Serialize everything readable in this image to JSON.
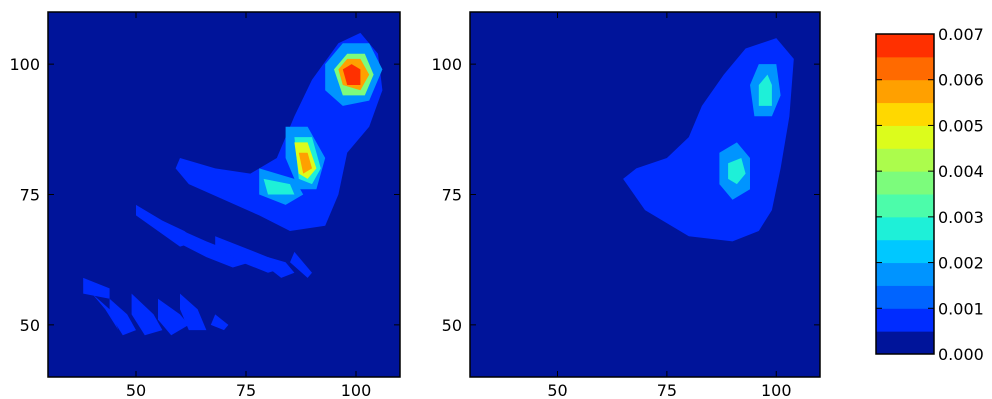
{
  "chart_data": [
    {
      "type": "heatmap",
      "subtype": "filled-contour",
      "xlim": [
        30,
        110
      ],
      "ylim": [
        40,
        110
      ],
      "xticks": [
        50,
        75,
        100
      ],
      "yticks": [
        50,
        75,
        100
      ],
      "xtick_labels": [
        "50",
        "75",
        "100"
      ],
      "ytick_labels": [
        "50",
        "75",
        "100"
      ],
      "title": "",
      "xlabel": "",
      "ylabel": "",
      "grid": false,
      "background_level": 0.0,
      "regions": [
        {
          "points": [
            [
              60,
              82
            ],
            [
              68,
              80
            ],
            [
              76,
              79
            ],
            [
              82,
              82
            ],
            [
              86,
              90
            ],
            [
              90,
              97
            ],
            [
              96,
              104
            ],
            [
              101,
              106
            ],
            [
              105,
              102
            ],
            [
              106,
              95
            ],
            [
              103,
              88
            ],
            [
              98,
              83
            ],
            [
              96,
              75
            ],
            [
              93,
              69
            ],
            [
              85,
              68
            ],
            [
              78,
              71
            ],
            [
              70,
              74
            ],
            [
              62,
              77
            ],
            [
              59,
              80
            ]
          ],
          "level": 0.0005
        },
        {
          "points": [
            [
              38,
              59
            ],
            [
              44,
              57
            ],
            [
              44,
              55
            ],
            [
              38,
              56
            ]
          ],
          "level": 0.0005
        },
        {
          "points": [
            [
              40,
              56
            ],
            [
              44,
              53
            ],
            [
              46,
              49
            ],
            [
              43,
              53
            ]
          ],
          "level": 0.0005
        },
        {
          "points": [
            [
              44,
              55
            ],
            [
              48,
              52
            ],
            [
              50,
              49
            ],
            [
              47,
              48
            ],
            [
              44,
              52
            ]
          ],
          "level": 0.0005
        },
        {
          "points": [
            [
              49,
              56
            ],
            [
              54,
              52
            ],
            [
              56,
              49
            ],
            [
              52,
              48
            ],
            [
              49,
              52
            ]
          ],
          "level": 0.0005
        },
        {
          "points": [
            [
              55,
              55
            ],
            [
              60,
              52
            ],
            [
              62,
              50
            ],
            [
              58,
              48
            ],
            [
              55,
              51
            ]
          ],
          "level": 0.0005
        },
        {
          "points": [
            [
              60,
              56
            ],
            [
              64,
              53
            ],
            [
              66,
              49
            ],
            [
              62,
              49
            ],
            [
              60,
              53
            ]
          ],
          "level": 0.0005
        },
        {
          "points": [
            [
              68,
              52
            ],
            [
              71,
              50
            ],
            [
              70,
              49
            ],
            [
              67,
              50
            ]
          ],
          "level": 0.0005
        },
        {
          "points": [
            [
              50,
              73
            ],
            [
              56,
              70
            ],
            [
              61,
              68
            ],
            [
              64,
              66
            ],
            [
              60,
              65
            ],
            [
              55,
              68
            ],
            [
              50,
              71
            ]
          ],
          "level": 0.0005
        },
        {
          "points": [
            [
              58,
              69
            ],
            [
              66,
              66
            ],
            [
              72,
              64
            ],
            [
              76,
              62
            ],
            [
              72,
              61
            ],
            [
              66,
              63
            ],
            [
              59,
              66
            ]
          ],
          "level": 0.0005
        },
        {
          "points": [
            [
              68,
              67
            ],
            [
              74,
              65
            ],
            [
              80,
              63
            ],
            [
              84,
              61
            ],
            [
              80,
              60
            ],
            [
              74,
              62
            ],
            [
              68,
              65
            ]
          ],
          "level": 0.0005
        },
        {
          "points": [
            [
              80,
              63
            ],
            [
              84,
              62
            ],
            [
              86,
              60
            ],
            [
              83,
              59
            ],
            [
              80,
              61
            ]
          ],
          "level": 0.0005
        },
        {
          "points": [
            [
              86,
              64
            ],
            [
              90,
              60
            ],
            [
              89,
              59
            ],
            [
              85,
              62
            ]
          ],
          "level": 0.0005
        },
        {
          "points": [
            [
              78,
              80
            ],
            [
              86,
              78
            ],
            [
              88,
              75
            ],
            [
              84,
              73
            ],
            [
              78,
              75
            ]
          ],
          "level": 0.0015
        },
        {
          "points": [
            [
              84,
              88
            ],
            [
              89,
              88
            ],
            [
              93,
              82
            ],
            [
              91,
              76
            ],
            [
              87,
              76
            ],
            [
              84,
              82
            ]
          ],
          "level": 0.0015
        },
        {
          "points": [
            [
              93,
              100
            ],
            [
              97,
              104
            ],
            [
              103,
              104
            ],
            [
              106,
              99
            ],
            [
              103,
              93
            ],
            [
              97,
              92
            ],
            [
              93,
              95
            ]
          ],
          "level": 0.0015
        },
        {
          "points": [
            [
              79,
              78
            ],
            [
              85,
              77
            ],
            [
              86,
              75
            ],
            [
              80,
              75
            ]
          ],
          "level": 0.0025
        },
        {
          "points": [
            [
              86,
              86
            ],
            [
              90,
              86
            ],
            [
              92,
              80
            ],
            [
              90,
              77
            ],
            [
              87,
              78
            ]
          ],
          "level": 0.0025
        },
        {
          "points": [
            [
              95,
              99
            ],
            [
              98,
              102
            ],
            [
              102,
              102
            ],
            [
              104,
              98
            ],
            [
              102,
              94
            ],
            [
              97,
              94
            ]
          ],
          "level": 0.0035
        },
        {
          "points": [
            [
              86,
              85
            ],
            [
              89,
              85
            ],
            [
              91,
              80
            ],
            [
              89,
              78
            ],
            [
              87,
              79
            ]
          ],
          "level": 0.0045
        },
        {
          "points": [
            [
              96,
              99
            ],
            [
              98,
              101
            ],
            [
              101,
              101
            ],
            [
              103,
              98
            ],
            [
              101,
              95
            ],
            [
              97,
              96
            ]
          ],
          "level": 0.0055
        },
        {
          "points": [
            [
              87,
              83
            ],
            [
              89,
              83
            ],
            [
              90,
              80
            ],
            [
              88,
              79
            ]
          ],
          "level": 0.0055
        },
        {
          "points": [
            [
              97,
              99
            ],
            [
              99,
              100
            ],
            [
              101,
              99
            ],
            [
              101,
              96
            ],
            [
              98,
              96
            ]
          ],
          "level": 0.0065
        }
      ]
    },
    {
      "type": "heatmap",
      "subtype": "filled-contour",
      "xlim": [
        30,
        110
      ],
      "ylim": [
        40,
        110
      ],
      "xticks": [
        50,
        75,
        100
      ],
      "yticks": [
        50,
        75,
        100
      ],
      "xtick_labels": [
        "50",
        "75",
        "100"
      ],
      "ytick_labels": [
        "50",
        "75",
        "100"
      ],
      "title": "",
      "xlabel": "",
      "ylabel": "",
      "grid": false,
      "background_level": 0.0,
      "regions": [
        {
          "points": [
            [
              65,
              78
            ],
            [
              68,
              80
            ],
            [
              75,
              82
            ],
            [
              80,
              86
            ],
            [
              83,
              92
            ],
            [
              88,
              98
            ],
            [
              93,
              103
            ],
            [
              100,
              105
            ],
            [
              104,
              101
            ],
            [
              103,
              90
            ],
            [
              101,
              80
            ],
            [
              99,
              72
            ],
            [
              96,
              68
            ],
            [
              90,
              66
            ],
            [
              80,
              67
            ],
            [
              70,
              72
            ]
          ],
          "level": 0.0005
        },
        {
          "points": [
            [
              87,
              83
            ],
            [
              91,
              85
            ],
            [
              94,
              82
            ],
            [
              94,
              76
            ],
            [
              90,
              74
            ],
            [
              87,
              77
            ]
          ],
          "level": 0.0015
        },
        {
          "points": [
            [
              94,
              96
            ],
            [
              96,
              100
            ],
            [
              100,
              100
            ],
            [
              101,
              94
            ],
            [
              99,
              90
            ],
            [
              95,
              90
            ]
          ],
          "level": 0.0015
        },
        {
          "points": [
            [
              89,
              81
            ],
            [
              92,
              82
            ],
            [
              93,
              79
            ],
            [
              91,
              77
            ],
            [
              89,
              78
            ]
          ],
          "level": 0.0025
        },
        {
          "points": [
            [
              96,
              96
            ],
            [
              98,
              98
            ],
            [
              99,
              96
            ],
            [
              99,
              92
            ],
            [
              96,
              92
            ]
          ],
          "level": 0.0025
        }
      ]
    }
  ],
  "colorbar": {
    "levels": [
      0.0,
      0.0005,
      0.001,
      0.0015,
      0.002,
      0.0025,
      0.003,
      0.0035,
      0.004,
      0.0045,
      0.005,
      0.0055,
      0.006,
      0.0065,
      0.007
    ],
    "colors": [
      "#00149a",
      "#002cff",
      "#0064ff",
      "#0094ff",
      "#00c8ff",
      "#1ef0d8",
      "#4cfcaa",
      "#7cfc7c",
      "#acfc4c",
      "#dcfc1c",
      "#ffd800",
      "#ffa000",
      "#ff6a00",
      "#ff3000",
      "#a01000"
    ],
    "tick_values": [
      0.0,
      0.001,
      0.002,
      0.003,
      0.004,
      0.005,
      0.006,
      0.007
    ],
    "tick_labels": [
      "0.000",
      "0.001",
      "0.002",
      "0.003",
      "0.004",
      "0.005",
      "0.006",
      "0.007"
    ]
  }
}
